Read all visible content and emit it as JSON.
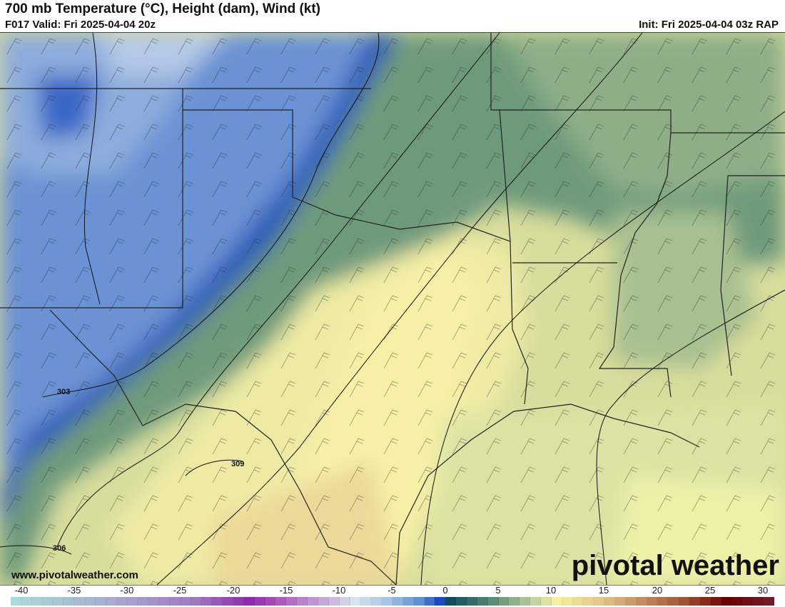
{
  "header": {
    "title": "700 mb Temperature (°C), Height (dam), Wind (kt)",
    "valid": "F017 Valid: Fri 2025-04-04 20z",
    "init": "Init: Fri 2025-04-04 03z RAP"
  },
  "map": {
    "height_contour_labels": [
      "303",
      "309",
      "306"
    ]
  },
  "footer": {
    "website": "www.pivotalweather.com",
    "logo_text": "pivotal weather"
  },
  "colorbar": {
    "units": "°C",
    "tick_labels": [
      "-40",
      "-35",
      "-30",
      "-25",
      "-20",
      "-15",
      "-10",
      "-5",
      "0",
      "5",
      "10",
      "15",
      "20",
      "25",
      "30"
    ],
    "range": [
      -41,
      31
    ],
    "stops": [
      {
        "t": -41,
        "color": "#a8dcd8"
      },
      {
        "t": -36,
        "color": "#a8c0d4"
      },
      {
        "t": -30,
        "color": "#a8a0cc"
      },
      {
        "t": -24,
        "color": "#9e78c0"
      },
      {
        "t": -19,
        "color": "#8c2cac"
      },
      {
        "t": -17,
        "color": "#a848b8"
      },
      {
        "t": -12,
        "color": "#c4a8d8"
      },
      {
        "t": -9,
        "color": "#d8e4ec"
      },
      {
        "t": -6,
        "color": "#a8c4e4"
      },
      {
        "t": -3,
        "color": "#6090d0"
      },
      {
        "t": -1,
        "color": "#1a4cc0"
      },
      {
        "t": 0,
        "color": "#104c5c"
      },
      {
        "t": 4,
        "color": "#5a8c78"
      },
      {
        "t": 8,
        "color": "#c4d49c"
      },
      {
        "t": 10,
        "color": "#f6f0a0"
      },
      {
        "t": 14,
        "color": "#e4c88c"
      },
      {
        "t": 18,
        "color": "#c48c60"
      },
      {
        "t": 22,
        "color": "#a05434"
      },
      {
        "t": 26,
        "color": "#6c0000"
      },
      {
        "t": 31,
        "color": "#702434"
      }
    ]
  }
}
